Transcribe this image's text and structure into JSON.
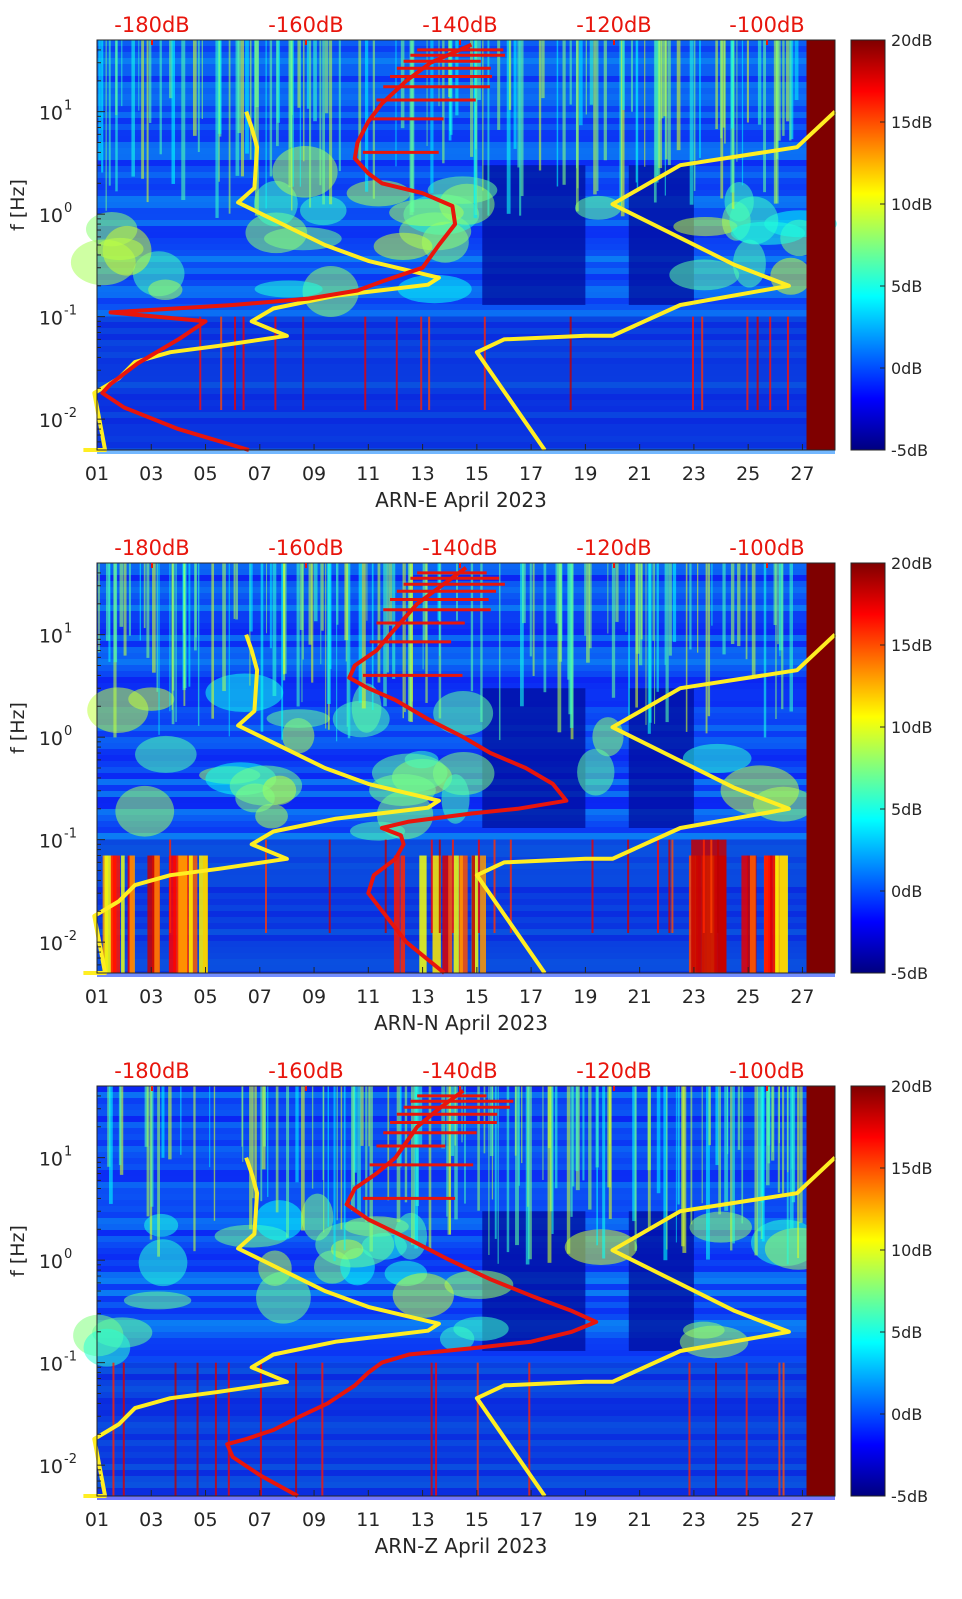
{
  "figure": {
    "colorbar_label_texts": [
      "20dB",
      "15dB",
      "10dB",
      "5dB",
      "0dB",
      "-5dB"
    ]
  },
  "chart_data": [
    {
      "type": "heatmap",
      "title": "",
      "xlabel": "ARN-E April 2023",
      "ylabel": "f [Hz]",
      "x_tick_labels": [
        "01",
        "03",
        "05",
        "07",
        "09",
        "11",
        "13",
        "15",
        "17",
        "19",
        "21",
        "23",
        "25",
        "27"
      ],
      "x_tick_days": [
        1,
        3,
        5,
        7,
        9,
        11,
        13,
        15,
        17,
        19,
        21,
        23,
        25,
        27
      ],
      "xlim_days": [
        1,
        28.2
      ],
      "y_scale": "log",
      "ylim": [
        0.005,
        50
      ],
      "y_tick_labels": [
        {
          "base": "10",
          "exp": "1"
        },
        {
          "base": "10",
          "exp": "0"
        },
        {
          "base": "10",
          "exp": "-1"
        },
        {
          "base": "10",
          "exp": "-2"
        }
      ],
      "y_tick_values": [
        10,
        1,
        0.1,
        0.01
      ],
      "colorbar": {
        "min": -5,
        "max": 20,
        "tick_labels": [
          "20dB",
          "15dB",
          "10dB",
          "5dB",
          "0dB",
          "-5dB"
        ],
        "tick_values": [
          20,
          15,
          10,
          5,
          0,
          -5
        ],
        "colormap": "jet"
      },
      "top_axis": {
        "tick_labels": [
          "-180dB",
          "-160dB",
          "-140dB",
          "-120dB",
          "-100dB"
        ],
        "tick_values_db": [
          -180,
          -160,
          -140,
          -120,
          -100
        ],
        "color": "#e8150c"
      },
      "overlay_lines": [
        {
          "color": "#ffee22",
          "role": "noise model",
          "points": [
            [
              0.5,
              0.005
            ],
            [
              1.3,
              0.005
            ],
            [
              0.9,
              0.018
            ],
            [
              1.8,
              0.025
            ],
            [
              2.4,
              0.036
            ],
            [
              3.7,
              0.045
            ],
            [
              5.5,
              0.052
            ],
            [
              8.0,
              0.065
            ],
            [
              6.7,
              0.09
            ],
            [
              7.5,
              0.12
            ],
            [
              9.8,
              0.16
            ],
            [
              13.2,
              0.205
            ],
            [
              13.6,
              0.24
            ],
            [
              11.0,
              0.35
            ],
            [
              9.4,
              0.5
            ],
            [
              6.2,
              1.3
            ],
            [
              6.8,
              1.8
            ],
            [
              6.9,
              4.5
            ],
            [
              6.7,
              7.0
            ],
            [
              6.5,
              10.0
            ]
          ]
        },
        {
          "color": "#ffee22",
          "role": "noise model",
          "points": [
            [
              17.5,
              0.005
            ],
            [
              15.0,
              0.045
            ],
            [
              16.0,
              0.06
            ],
            [
              19.0,
              0.065
            ],
            [
              20.0,
              0.065
            ],
            [
              22.5,
              0.13
            ],
            [
              26.5,
              0.2
            ],
            [
              24.5,
              0.32
            ],
            [
              20.0,
              1.25
            ],
            [
              22.5,
              3.0
            ],
            [
              26.8,
              4.5
            ],
            [
              28.2,
              10.0
            ]
          ]
        },
        {
          "color": "#e8150c",
          "role": "spectrum",
          "points": [
            [
              6.6,
              0.005
            ],
            [
              4.0,
              0.008
            ],
            [
              2.0,
              0.013
            ],
            [
              1.2,
              0.018
            ],
            [
              1.5,
              0.022
            ],
            [
              2.5,
              0.035
            ],
            [
              4.0,
              0.06
            ],
            [
              5.0,
              0.09
            ],
            [
              1.5,
              0.11
            ],
            [
              6.0,
              0.13
            ],
            [
              8.8,
              0.15
            ],
            [
              10.6,
              0.18
            ],
            [
              11.5,
              0.22
            ],
            [
              13.0,
              0.3
            ],
            [
              13.6,
              0.5
            ],
            [
              14.2,
              0.8
            ],
            [
              14.1,
              1.2
            ],
            [
              13.0,
              1.6
            ],
            [
              11.5,
              2.0
            ],
            [
              11.0,
              2.5
            ],
            [
              10.5,
              3.5
            ],
            [
              10.6,
              5.0
            ],
            [
              11.0,
              8.0
            ],
            [
              11.5,
              12.0
            ],
            [
              12.4,
              20.0
            ],
            [
              13.3,
              30.0
            ],
            [
              14.8,
              45.0
            ]
          ]
        }
      ]
    },
    {
      "type": "heatmap",
      "title": "",
      "xlabel": "ARN-N April 2023",
      "ylabel": "f [Hz]",
      "x_tick_labels": [
        "01",
        "03",
        "05",
        "07",
        "09",
        "11",
        "13",
        "15",
        "17",
        "19",
        "21",
        "23",
        "25",
        "27"
      ],
      "x_tick_days": [
        1,
        3,
        5,
        7,
        9,
        11,
        13,
        15,
        17,
        19,
        21,
        23,
        25,
        27
      ],
      "xlim_days": [
        1,
        28.2
      ],
      "y_scale": "log",
      "ylim": [
        0.005,
        50
      ],
      "y_tick_labels": [
        {
          "base": "10",
          "exp": "1"
        },
        {
          "base": "10",
          "exp": "0"
        },
        {
          "base": "10",
          "exp": "-1"
        },
        {
          "base": "10",
          "exp": "-2"
        }
      ],
      "y_tick_values": [
        10,
        1,
        0.1,
        0.01
      ],
      "colorbar": {
        "min": -5,
        "max": 20,
        "tick_labels": [
          "20dB",
          "15dB",
          "10dB",
          "5dB",
          "0dB",
          "-5dB"
        ],
        "tick_values": [
          20,
          15,
          10,
          5,
          0,
          -5
        ],
        "colormap": "jet"
      },
      "top_axis": {
        "tick_labels": [
          "-180dB",
          "-160dB",
          "-140dB",
          "-120dB",
          "-100dB"
        ],
        "tick_values_db": [
          -180,
          -160,
          -140,
          -120,
          -100
        ],
        "color": "#e8150c"
      },
      "overlay_lines": [
        {
          "color": "#ffee22",
          "role": "noise model",
          "points": [
            [
              0.5,
              0.005
            ],
            [
              1.3,
              0.005
            ],
            [
              0.9,
              0.018
            ],
            [
              1.8,
              0.025
            ],
            [
              2.4,
              0.036
            ],
            [
              3.7,
              0.045
            ],
            [
              5.5,
              0.052
            ],
            [
              8.0,
              0.065
            ],
            [
              6.7,
              0.09
            ],
            [
              7.5,
              0.12
            ],
            [
              9.8,
              0.16
            ],
            [
              13.2,
              0.205
            ],
            [
              13.6,
              0.24
            ],
            [
              11.0,
              0.35
            ],
            [
              9.4,
              0.5
            ],
            [
              6.2,
              1.3
            ],
            [
              6.8,
              1.8
            ],
            [
              6.9,
              4.5
            ],
            [
              6.7,
              7.0
            ],
            [
              6.5,
              10.0
            ]
          ]
        },
        {
          "color": "#ffee22",
          "role": "noise model",
          "points": [
            [
              17.5,
              0.005
            ],
            [
              15.0,
              0.045
            ],
            [
              16.0,
              0.06
            ],
            [
              19.0,
              0.065
            ],
            [
              20.0,
              0.065
            ],
            [
              22.5,
              0.13
            ],
            [
              26.5,
              0.2
            ],
            [
              24.5,
              0.32
            ],
            [
              20.0,
              1.25
            ],
            [
              22.5,
              3.0
            ],
            [
              26.8,
              4.5
            ],
            [
              28.2,
              10.0
            ]
          ]
        },
        {
          "color": "#e8150c",
          "role": "spectrum",
          "points": [
            [
              13.8,
              0.005
            ],
            [
              12.4,
              0.01
            ],
            [
              11.0,
              0.03
            ],
            [
              11.2,
              0.045
            ],
            [
              12.0,
              0.065
            ],
            [
              12.3,
              0.09
            ],
            [
              12.2,
              0.11
            ],
            [
              11.5,
              0.13
            ],
            [
              12.5,
              0.15
            ],
            [
              14.8,
              0.18
            ],
            [
              16.5,
              0.2
            ],
            [
              18.3,
              0.24
            ],
            [
              17.8,
              0.35
            ],
            [
              16.8,
              0.5
            ],
            [
              15.5,
              0.7
            ],
            [
              14.5,
              1.0
            ],
            [
              13.2,
              1.5
            ],
            [
              12.0,
              2.3
            ],
            [
              11.0,
              3.0
            ],
            [
              10.3,
              3.8
            ],
            [
              10.5,
              5.0
            ],
            [
              11.3,
              7.0
            ],
            [
              11.8,
              10.0
            ],
            [
              12.8,
              20.0
            ],
            [
              13.7,
              30.0
            ],
            [
              14.6,
              45.0
            ]
          ]
        }
      ]
    },
    {
      "type": "heatmap",
      "title": "",
      "xlabel": "ARN-Z April 2023",
      "ylabel": "f [Hz]",
      "x_tick_labels": [
        "01",
        "03",
        "05",
        "07",
        "09",
        "11",
        "13",
        "15",
        "17",
        "19",
        "21",
        "23",
        "25",
        "27"
      ],
      "x_tick_days": [
        1,
        3,
        5,
        7,
        9,
        11,
        13,
        15,
        17,
        19,
        21,
        23,
        25,
        27
      ],
      "xlim_days": [
        1,
        28.2
      ],
      "y_scale": "log",
      "ylim": [
        0.005,
        50
      ],
      "y_tick_labels": [
        {
          "base": "10",
          "exp": "1"
        },
        {
          "base": "10",
          "exp": "0"
        },
        {
          "base": "10",
          "exp": "-1"
        },
        {
          "base": "10",
          "exp": "-2"
        }
      ],
      "y_tick_values": [
        10,
        1,
        0.1,
        0.01
      ],
      "colorbar": {
        "min": -5,
        "max": 20,
        "tick_labels": [
          "20dB",
          "15dB",
          "10dB",
          "5dB",
          "0dB",
          "-5dB"
        ],
        "tick_values": [
          20,
          15,
          10,
          5,
          0,
          -5
        ],
        "colormap": "jet"
      },
      "top_axis": {
        "tick_labels": [
          "-180dB",
          "-160dB",
          "-140dB",
          "-120dB",
          "-100dB"
        ],
        "tick_values_db": [
          -180,
          -160,
          -140,
          -120,
          -100
        ],
        "color": "#e8150c"
      },
      "overlay_lines": [
        {
          "color": "#ffee22",
          "role": "noise model",
          "points": [
            [
              0.5,
              0.005
            ],
            [
              1.3,
              0.005
            ],
            [
              0.9,
              0.018
            ],
            [
              1.8,
              0.025
            ],
            [
              2.4,
              0.036
            ],
            [
              3.7,
              0.045
            ],
            [
              5.5,
              0.052
            ],
            [
              8.0,
              0.065
            ],
            [
              6.7,
              0.09
            ],
            [
              7.5,
              0.12
            ],
            [
              9.8,
              0.16
            ],
            [
              13.2,
              0.205
            ],
            [
              13.6,
              0.24
            ],
            [
              11.0,
              0.35
            ],
            [
              9.4,
              0.5
            ],
            [
              6.2,
              1.3
            ],
            [
              6.8,
              1.8
            ],
            [
              6.9,
              4.5
            ],
            [
              6.7,
              7.0
            ],
            [
              6.5,
              10.0
            ]
          ]
        },
        {
          "color": "#ffee22",
          "role": "noise model",
          "points": [
            [
              17.5,
              0.005
            ],
            [
              15.0,
              0.045
            ],
            [
              16.0,
              0.06
            ],
            [
              19.0,
              0.065
            ],
            [
              20.0,
              0.065
            ],
            [
              22.5,
              0.13
            ],
            [
              26.5,
              0.2
            ],
            [
              24.5,
              0.32
            ],
            [
              20.0,
              1.25
            ],
            [
              22.5,
              3.0
            ],
            [
              26.8,
              4.5
            ],
            [
              28.2,
              10.0
            ]
          ]
        },
        {
          "color": "#e8150c",
          "role": "spectrum",
          "points": [
            [
              8.4,
              0.005
            ],
            [
              7.0,
              0.008
            ],
            [
              6.0,
              0.012
            ],
            [
              5.8,
              0.016
            ],
            [
              6.5,
              0.018
            ],
            [
              7.5,
              0.022
            ],
            [
              8.5,
              0.03
            ],
            [
              9.5,
              0.04
            ],
            [
              10.5,
              0.06
            ],
            [
              11.0,
              0.08
            ],
            [
              11.5,
              0.1
            ],
            [
              12.5,
              0.12
            ],
            [
              15.0,
              0.14
            ],
            [
              17.0,
              0.16
            ],
            [
              18.5,
              0.2
            ],
            [
              19.4,
              0.25
            ],
            [
              18.5,
              0.32
            ],
            [
              17.0,
              0.45
            ],
            [
              15.5,
              0.65
            ],
            [
              14.0,
              1.0
            ],
            [
              12.5,
              1.6
            ],
            [
              11.0,
              2.5
            ],
            [
              10.2,
              3.5
            ],
            [
              10.5,
              5.0
            ],
            [
              11.3,
              7.0
            ],
            [
              12.0,
              10.0
            ],
            [
              12.8,
              20.0
            ],
            [
              13.6,
              30.0
            ],
            [
              14.5,
              45.0
            ]
          ]
        }
      ]
    }
  ]
}
